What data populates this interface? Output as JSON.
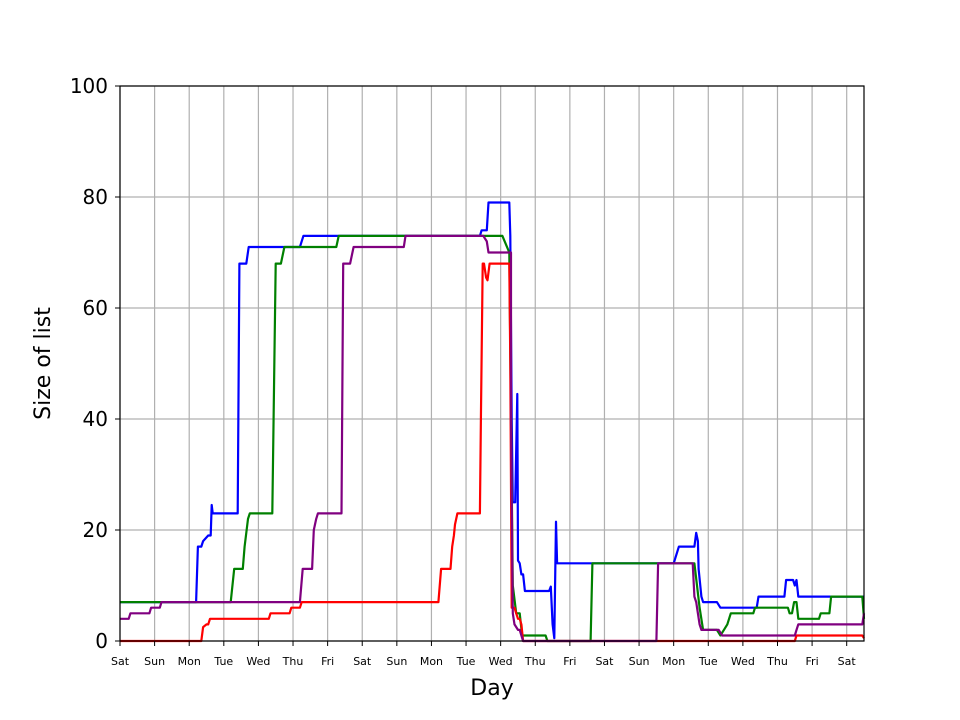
{
  "chart_data": {
    "type": "line",
    "title": "",
    "xlabel": "Day",
    "ylabel": "Size of list",
    "ylim": [
      0,
      100
    ],
    "yticks": [
      0,
      20,
      40,
      60,
      80,
      100
    ],
    "xlim": [
      0,
      21.5
    ],
    "xtick_labels": [
      "Sat",
      "Sun",
      "Mon",
      "Tue",
      "Wed",
      "Thu",
      "Fri",
      "Sat",
      "Sun",
      "Mon",
      "Tue",
      "Wed",
      "Thu",
      "Fri",
      "Sat",
      "Sun",
      "Mon",
      "Tue",
      "Wed",
      "Thu",
      "Fri",
      "Sat"
    ],
    "grid": true,
    "legend": null,
    "series": [
      {
        "color": "#0000ff",
        "points": [
          [
            0,
            7
          ],
          [
            2.2,
            7
          ],
          [
            2.25,
            17
          ],
          [
            2.35,
            17
          ],
          [
            2.4,
            18
          ],
          [
            2.55,
            19
          ],
          [
            2.62,
            19
          ],
          [
            2.65,
            24.5
          ],
          [
            2.68,
            23
          ],
          [
            3.4,
            23
          ],
          [
            3.45,
            68
          ],
          [
            3.65,
            68
          ],
          [
            3.72,
            71
          ],
          [
            5.2,
            71
          ],
          [
            5.3,
            73
          ],
          [
            7.6,
            73
          ],
          [
            8.0,
            73
          ],
          [
            10.4,
            73
          ],
          [
            10.45,
            74
          ],
          [
            10.6,
            74
          ],
          [
            10.65,
            79
          ],
          [
            11.25,
            79
          ],
          [
            11.28,
            73
          ],
          [
            11.32,
            40
          ],
          [
            11.35,
            25
          ],
          [
            11.42,
            25
          ],
          [
            11.48,
            44.5
          ],
          [
            11.5,
            14.5
          ],
          [
            11.55,
            14
          ],
          [
            11.6,
            12
          ],
          [
            11.65,
            12
          ],
          [
            11.7,
            9
          ],
          [
            12.4,
            9
          ],
          [
            12.45,
            9.8
          ],
          [
            12.5,
            3
          ],
          [
            12.55,
            0.5
          ],
          [
            12.6,
            21.5
          ],
          [
            12.63,
            14
          ],
          [
            15.9,
            14
          ],
          [
            15.95,
            14
          ],
          [
            16.0,
            14
          ],
          [
            16.15,
            17
          ],
          [
            16.45,
            17
          ],
          [
            16.6,
            17
          ],
          [
            16.65,
            19.5
          ],
          [
            16.7,
            18
          ],
          [
            16.72,
            13
          ],
          [
            16.8,
            8
          ],
          [
            16.85,
            7
          ],
          [
            17.25,
            7
          ],
          [
            17.35,
            6
          ],
          [
            18.4,
            6
          ],
          [
            18.45,
            8
          ],
          [
            19.2,
            8
          ],
          [
            19.25,
            11
          ],
          [
            19.45,
            11
          ],
          [
            19.5,
            10
          ],
          [
            19.55,
            11
          ],
          [
            19.6,
            8
          ],
          [
            21.5,
            8
          ]
        ]
      },
      {
        "color": "#008000",
        "points": [
          [
            0,
            7
          ],
          [
            3.2,
            7
          ],
          [
            3.3,
            13
          ],
          [
            3.55,
            13
          ],
          [
            3.6,
            17
          ],
          [
            3.7,
            22
          ],
          [
            3.75,
            23
          ],
          [
            4.4,
            23
          ],
          [
            4.5,
            68
          ],
          [
            4.65,
            68
          ],
          [
            4.75,
            71
          ],
          [
            6.25,
            71
          ],
          [
            6.32,
            73
          ],
          [
            8.0,
            73
          ],
          [
            10.4,
            73
          ],
          [
            10.5,
            73
          ],
          [
            11.0,
            73
          ],
          [
            11.05,
            73
          ],
          [
            11.25,
            70
          ],
          [
            11.3,
            40
          ],
          [
            11.35,
            10
          ],
          [
            11.45,
            5
          ],
          [
            11.55,
            5
          ],
          [
            11.62,
            1
          ],
          [
            12.3,
            1
          ],
          [
            12.35,
            0
          ],
          [
            13.6,
            0
          ],
          [
            13.65,
            14
          ],
          [
            16.5,
            14
          ],
          [
            16.6,
            14
          ],
          [
            16.75,
            6
          ],
          [
            16.85,
            2
          ],
          [
            17.25,
            2
          ],
          [
            17.35,
            1
          ],
          [
            17.45,
            2
          ],
          [
            17.55,
            3
          ],
          [
            17.65,
            5
          ],
          [
            18.3,
            5
          ],
          [
            18.35,
            6
          ],
          [
            19.3,
            6
          ],
          [
            19.35,
            5
          ],
          [
            19.42,
            5
          ],
          [
            19.48,
            7
          ],
          [
            19.55,
            7
          ],
          [
            19.6,
            4
          ],
          [
            20.2,
            4
          ],
          [
            20.25,
            5
          ],
          [
            20.5,
            5
          ],
          [
            20.55,
            8
          ],
          [
            21.45,
            8
          ],
          [
            21.5,
            4
          ]
        ]
      },
      {
        "color": "#ff0000",
        "points": [
          [
            0,
            0
          ],
          [
            2.35,
            0
          ],
          [
            2.4,
            2.5
          ],
          [
            2.5,
            3
          ],
          [
            2.55,
            3
          ],
          [
            2.6,
            4
          ],
          [
            4.3,
            4
          ],
          [
            4.35,
            5
          ],
          [
            4.9,
            5
          ],
          [
            4.95,
            6
          ],
          [
            5.2,
            6
          ],
          [
            5.25,
            7
          ],
          [
            8.0,
            7
          ],
          [
            9.2,
            7
          ],
          [
            9.28,
            13
          ],
          [
            9.55,
            13
          ],
          [
            9.6,
            17
          ],
          [
            9.65,
            19
          ],
          [
            9.68,
            21
          ],
          [
            9.75,
            23
          ],
          [
            10.4,
            23
          ],
          [
            10.43,
            40
          ],
          [
            10.48,
            68
          ],
          [
            10.52,
            68
          ],
          [
            10.58,
            65.5
          ],
          [
            10.62,
            65
          ],
          [
            10.68,
            68
          ],
          [
            11.2,
            68
          ],
          [
            11.25,
            68
          ],
          [
            11.28,
            50
          ],
          [
            11.32,
            6
          ],
          [
            11.4,
            6
          ],
          [
            11.45,
            5
          ],
          [
            11.5,
            4
          ],
          [
            11.55,
            4
          ],
          [
            11.6,
            3
          ],
          [
            11.65,
            0
          ],
          [
            19.5,
            0
          ],
          [
            19.55,
            1
          ],
          [
            21.45,
            1
          ],
          [
            21.5,
            0.5
          ]
        ]
      },
      {
        "color": "#800080",
        "points": [
          [
            0,
            4
          ],
          [
            0.25,
            4
          ],
          [
            0.3,
            5
          ],
          [
            0.85,
            5
          ],
          [
            0.9,
            6
          ],
          [
            1.15,
            6
          ],
          [
            1.2,
            7
          ],
          [
            5.2,
            7
          ],
          [
            5.28,
            13
          ],
          [
            5.55,
            13
          ],
          [
            5.6,
            20
          ],
          [
            5.67,
            22
          ],
          [
            5.72,
            23
          ],
          [
            6.4,
            23
          ],
          [
            6.45,
            68
          ],
          [
            6.65,
            68
          ],
          [
            6.75,
            71
          ],
          [
            8.2,
            71
          ],
          [
            8.25,
            73
          ],
          [
            10.5,
            73
          ],
          [
            10.6,
            72
          ],
          [
            10.65,
            70
          ],
          [
            11.3,
            70
          ],
          [
            11.3,
            40
          ],
          [
            11.35,
            5
          ],
          [
            11.4,
            3
          ],
          [
            11.5,
            2
          ],
          [
            11.55,
            2
          ],
          [
            11.6,
            1
          ],
          [
            11.65,
            0
          ],
          [
            15.5,
            0
          ],
          [
            15.55,
            14
          ],
          [
            16.5,
            14
          ],
          [
            16.55,
            14
          ],
          [
            16.6,
            8
          ],
          [
            16.65,
            7
          ],
          [
            16.7,
            5
          ],
          [
            16.75,
            3
          ],
          [
            16.8,
            2
          ],
          [
            17.3,
            2
          ],
          [
            17.4,
            1
          ],
          [
            19.5,
            1
          ],
          [
            19.55,
            2
          ],
          [
            19.6,
            3
          ],
          [
            21.45,
            3
          ],
          [
            21.5,
            5
          ]
        ]
      }
    ]
  }
}
